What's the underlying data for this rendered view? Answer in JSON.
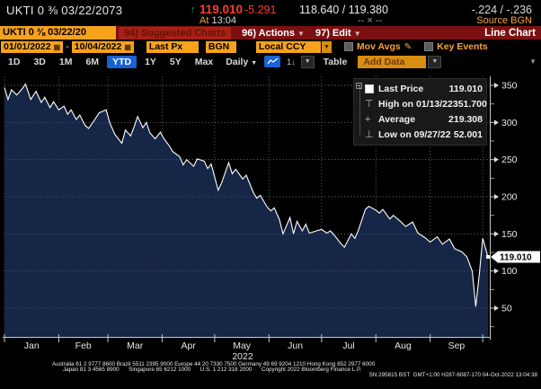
{
  "security_bar": {
    "ticker": "UKTI 0 ⅜ 03/22/2073",
    "tick_arrow": "↑",
    "last_price": "119.010",
    "net_change": "-5.291",
    "bid_ask": "118.640 / 119.380",
    "chg_pair": "-.224 / -.236",
    "at_label": "At",
    "at_time": "13:04",
    "size_pair": "-- × --",
    "source_label": "Source BGN"
  },
  "menu_bar": {
    "ticker_field": "UKTI 0 ⅜ 03/22/20",
    "suggested": "94) Suggested Charts",
    "actions": "96) Actions",
    "edit": "97) Edit",
    "title": "Line Chart"
  },
  "settings_bar": {
    "date_from": "01/01/2022",
    "date_dash": "-",
    "date_to": "10/04/2022",
    "field": "Last Px",
    "source": "BGN",
    "currency": "Local CCY",
    "mov_avgs": "Mov Avgs",
    "key_events": "Key Events"
  },
  "period_bar": {
    "tabs": [
      "1D",
      "3D",
      "1M",
      "6M",
      "YTD",
      "1Y",
      "5Y",
      "Max"
    ],
    "selected": "YTD",
    "frequency": "Daily",
    "annotate": "1↓",
    "table": "Table",
    "add_data": "Add Data"
  },
  "legend": {
    "rows": [
      {
        "marker": "square",
        "label": "Last Price",
        "value": "119.010"
      },
      {
        "marker": "high",
        "label": "High on 01/13/22",
        "value": "351.700"
      },
      {
        "marker": "avg",
        "label": "Average",
        "value": "219.308"
      },
      {
        "marker": "low",
        "label": "Low on 09/27/22",
        "value": "52.001"
      }
    ]
  },
  "colors": {
    "amber": "#f6a21c",
    "red_bar": "#7a1012",
    "price_red": "#ff3b30",
    "blue": "#1a62d4",
    "line": "#ffffff",
    "area_fill": "#152647",
    "grid": "#8a8a8a",
    "axis": "#c8c8c8"
  },
  "chart_data": {
    "type": "area",
    "title": "UKTI 0 ⅜ 03/22/2073 Last Price YTD",
    "series_name": "Last Price",
    "x_unit": "day_of_year_2022",
    "x_range": [
      1,
      277
    ],
    "ylim": [
      11,
      362
    ],
    "y_ticks": [
      350,
      300,
      250,
      200,
      150,
      100,
      50
    ],
    "y_minor_ticks": [
      325,
      275,
      225,
      175,
      125,
      75,
      25
    ],
    "grid": "dotted",
    "legend_position": "top-right",
    "last_price": 119.01,
    "last_price_label": "119.010",
    "high": {
      "date": "01/13/22",
      "value": 351.7
    },
    "low": {
      "date": "09/27/22",
      "value": 52.001
    },
    "average": 219.308,
    "year_label": "2022",
    "months": [
      {
        "label": "Jan",
        "day": 1
      },
      {
        "label": "Feb",
        "day": 32
      },
      {
        "label": "Mar",
        "day": 60
      },
      {
        "label": "Apr",
        "day": 91
      },
      {
        "label": "May",
        "day": 121
      },
      {
        "label": "Jun",
        "day": 152
      },
      {
        "label": "Jul",
        "day": 182
      },
      {
        "label": "Aug",
        "day": 213
      },
      {
        "label": "Sep",
        "day": 244
      }
    ],
    "end_boundary_day": 274,
    "points": [
      [
        1,
        347
      ],
      [
        3,
        331
      ],
      [
        5,
        344
      ],
      [
        8,
        337
      ],
      [
        11,
        345
      ],
      [
        13,
        351.7
      ],
      [
        16,
        331
      ],
      [
        19,
        342
      ],
      [
        22,
        327
      ],
      [
        24,
        334
      ],
      [
        27,
        320
      ],
      [
        29,
        328
      ],
      [
        32,
        317
      ],
      [
        35,
        322
      ],
      [
        37,
        311
      ],
      [
        39,
        317
      ],
      [
        42,
        304
      ],
      [
        44,
        310
      ],
      [
        47,
        296
      ],
      [
        49,
        292
      ],
      [
        52,
        302
      ],
      [
        55,
        313
      ],
      [
        59,
        317
      ],
      [
        61,
        300
      ],
      [
        64,
        284
      ],
      [
        68,
        272
      ],
      [
        70,
        290
      ],
      [
        73,
        282
      ],
      [
        75,
        294
      ],
      [
        77,
        308
      ],
      [
        80,
        293
      ],
      [
        82,
        300
      ],
      [
        84,
        286
      ],
      [
        87,
        278
      ],
      [
        90,
        287
      ],
      [
        92,
        278
      ],
      [
        95,
        269
      ],
      [
        97,
        261
      ],
      [
        101,
        254
      ],
      [
        103,
        243
      ],
      [
        105,
        250
      ],
      [
        109,
        241
      ],
      [
        111,
        251
      ],
      [
        115,
        248
      ],
      [
        117,
        238
      ],
      [
        119,
        244
      ],
      [
        123,
        209
      ],
      [
        125,
        219
      ],
      [
        129,
        246
      ],
      [
        131,
        231
      ],
      [
        133,
        237
      ],
      [
        137,
        224
      ],
      [
        139,
        229
      ],
      [
        143,
        206
      ],
      [
        145,
        198
      ],
      [
        147,
        202
      ],
      [
        151,
        186
      ],
      [
        153,
        181
      ],
      [
        155,
        185
      ],
      [
        158,
        169
      ],
      [
        160,
        150
      ],
      [
        164,
        172
      ],
      [
        166,
        150
      ],
      [
        168,
        167
      ],
      [
        171,
        154
      ],
      [
        173,
        163
      ],
      [
        175,
        151
      ],
      [
        179,
        154
      ],
      [
        182,
        156
      ],
      [
        185,
        151
      ],
      [
        187,
        154
      ],
      [
        189,
        149
      ],
      [
        193,
        137
      ],
      [
        195,
        132
      ],
      [
        199,
        150
      ],
      [
        201,
        144
      ],
      [
        203,
        155
      ],
      [
        207,
        183
      ],
      [
        209,
        187
      ],
      [
        213,
        182
      ],
      [
        215,
        178
      ],
      [
        217,
        183
      ],
      [
        221,
        170
      ],
      [
        223,
        175
      ],
      [
        227,
        167
      ],
      [
        230,
        160
      ],
      [
        234,
        166
      ],
      [
        237,
        151
      ],
      [
        241,
        145
      ],
      [
        244,
        139
      ],
      [
        248,
        146
      ],
      [
        251,
        136
      ],
      [
        255,
        143
      ],
      [
        258,
        130
      ],
      [
        262,
        126
      ],
      [
        265,
        119
      ],
      [
        268,
        100
      ],
      [
        270,
        52
      ],
      [
        272,
        95
      ],
      [
        274,
        144
      ],
      [
        276,
        127
      ],
      [
        277,
        119.01
      ]
    ]
  },
  "footer": {
    "line1": "Australia 61 2 9777 8600 Brazil 5511 2395 9000 Europe 44 20 7330 7500 Germany 49 69 9204 1210 Hong Kong 852 2977 6000",
    "line2": "Japan 81 3 4565 8900      Singapore 65 6212 1000      U.S. 1 212 318 2000      Copyright 2022 Bloomberg Finance L.P.",
    "line3": "SN 295815 BST  GMT+1:00 H287-6087-170 04-Oct-2022 13:04:38"
  }
}
